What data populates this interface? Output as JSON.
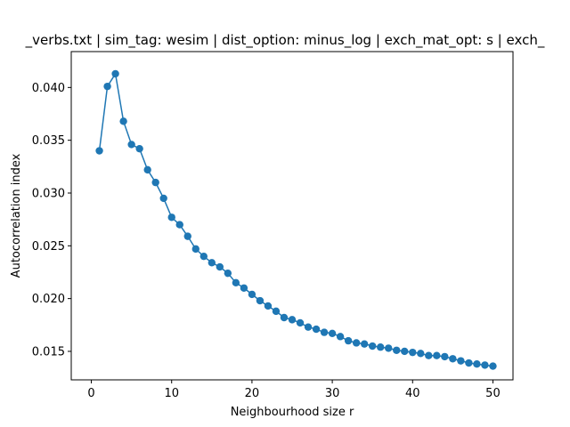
{
  "chart_data": {
    "type": "line",
    "title": "_verbs.txt | sim_tag: wesim | dist_option: minus_log | exch_mat_opt: s | exch_",
    "xlabel": "Neighbourhood size r",
    "ylabel": "Autocorrelation index",
    "xlim": [
      -2.5,
      52.5
    ],
    "ylim": [
      0.0123,
      0.0434
    ],
    "xticks": [
      0,
      10,
      20,
      30,
      40,
      50
    ],
    "xtick_labels": [
      "0",
      "10",
      "20",
      "30",
      "40",
      "50"
    ],
    "yticks": [
      0.015,
      0.02,
      0.025,
      0.03,
      0.035,
      0.04
    ],
    "ytick_labels": [
      "0.015",
      "0.020",
      "0.025",
      "0.030",
      "0.035",
      "0.040"
    ],
    "grid": false,
    "marker": "circle",
    "color": "#1f77b4",
    "series": [
      {
        "x": [
          1,
          2,
          3,
          4,
          5,
          6,
          7,
          8,
          9,
          10,
          11,
          12,
          13,
          14,
          15,
          16,
          17,
          18,
          19,
          20,
          21,
          22,
          23,
          24,
          25,
          26,
          27,
          28,
          29,
          30,
          31,
          32,
          33,
          34,
          35,
          36,
          37,
          38,
          39,
          40,
          41,
          42,
          43,
          44,
          45,
          46,
          47,
          48,
          49,
          50
        ],
        "values": [
          0.034,
          0.0401,
          0.0413,
          0.0368,
          0.0346,
          0.0342,
          0.0322,
          0.031,
          0.0295,
          0.0277,
          0.027,
          0.0259,
          0.0247,
          0.024,
          0.0234,
          0.023,
          0.0224,
          0.0215,
          0.021,
          0.0204,
          0.0198,
          0.0193,
          0.0188,
          0.0182,
          0.018,
          0.0177,
          0.0173,
          0.0171,
          0.0168,
          0.0167,
          0.0164,
          0.016,
          0.0158,
          0.0157,
          0.0155,
          0.0154,
          0.0153,
          0.0151,
          0.015,
          0.0149,
          0.0148,
          0.0146,
          0.0146,
          0.0145,
          0.0143,
          0.0141,
          0.0139,
          0.0138,
          0.0137,
          0.0136
        ]
      }
    ]
  }
}
